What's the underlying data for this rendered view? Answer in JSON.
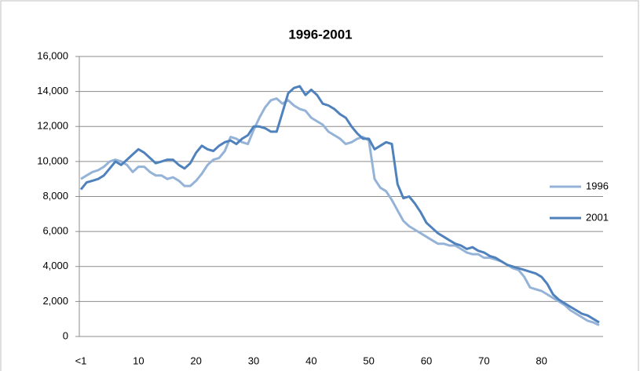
{
  "chart_data": {
    "type": "line",
    "title": "1996-2001",
    "categories": [
      "<1",
      null,
      null,
      null,
      null,
      null,
      null,
      null,
      null,
      null,
      "10",
      null,
      null,
      null,
      null,
      null,
      null,
      null,
      null,
      null,
      "20",
      null,
      null,
      null,
      null,
      null,
      null,
      null,
      null,
      null,
      "30",
      null,
      null,
      null,
      null,
      null,
      null,
      null,
      null,
      null,
      "40",
      null,
      null,
      null,
      null,
      null,
      null,
      null,
      null,
      null,
      "50",
      null,
      null,
      null,
      null,
      null,
      null,
      null,
      null,
      null,
      "60",
      null,
      null,
      null,
      null,
      null,
      null,
      null,
      null,
      null,
      "70",
      null,
      null,
      null,
      null,
      null,
      null,
      null,
      null,
      null,
      "80",
      null,
      null,
      null,
      null,
      null,
      null,
      null,
      null,
      null,
      null
    ],
    "series": [
      {
        "name": "1996",
        "color": "#95b3d7",
        "values": [
          9000,
          9200,
          9400,
          9500,
          9700,
          10000,
          10100,
          10000,
          9800,
          9400,
          9700,
          9700,
          9400,
          9200,
          9200,
          9000,
          9100,
          8900,
          8600,
          8600,
          8900,
          9300,
          9800,
          10100,
          10200,
          10600,
          11400,
          11300,
          11100,
          11000,
          11800,
          12500,
          13100,
          13500,
          13600,
          13300,
          13500,
          13200,
          13000,
          12900,
          12500,
          12300,
          12100,
          11700,
          11500,
          11300,
          11000,
          11100,
          11300,
          11400,
          11200,
          9000,
          8500,
          8300,
          7800,
          7200,
          6600,
          6300,
          6100,
          5900,
          5700,
          5500,
          5300,
          5300,
          5200,
          5200,
          5000,
          4800,
          4700,
          4700,
          4500,
          4500,
          4400,
          4300,
          4100,
          3900,
          3800,
          3400,
          2800,
          2700,
          2600,
          2400,
          2200,
          2000,
          1800,
          1500,
          1300,
          1100,
          900,
          800,
          650
        ]
      },
      {
        "name": "2001",
        "color": "#4f81bd",
        "values": [
          8400,
          8800,
          8900,
          9000,
          9200,
          9600,
          10000,
          9800,
          10100,
          10400,
          10700,
          10500,
          10200,
          9900,
          10000,
          10100,
          10100,
          9800,
          9600,
          9900,
          10500,
          10900,
          10700,
          10600,
          10900,
          11100,
          11200,
          11000,
          11300,
          11500,
          12000,
          12000,
          11900,
          11700,
          11700,
          12800,
          13900,
          14200,
          14300,
          13800,
          14100,
          13800,
          13300,
          13200,
          13000,
          12700,
          12500,
          12000,
          11600,
          11300,
          11300,
          10700,
          10900,
          11100,
          11000,
          8700,
          7900,
          8000,
          7600,
          7100,
          6500,
          6200,
          5900,
          5700,
          5500,
          5300,
          5200,
          5000,
          5100,
          4900,
          4800,
          4600,
          4500,
          4300,
          4100,
          4000,
          3900,
          3800,
          3700,
          3600,
          3400,
          3000,
          2400,
          2100,
          1900,
          1700,
          1500,
          1300,
          1200,
          1000,
          800
        ]
      }
    ],
    "ylim": [
      0,
      16000
    ],
    "yticks": [
      0,
      {
        "value": 2000,
        "label": "2,000"
      },
      {
        "value": 4000,
        "label": "4,000"
      },
      {
        "value": 6000,
        "label": "6,000"
      },
      {
        "value": 8000,
        "label": "8,000"
      },
      {
        "value": 10000,
        "label": "10,000"
      },
      {
        "value": 12000,
        "label": "12,000"
      },
      {
        "value": 14000,
        "label": "14,000"
      },
      {
        "value": 16000,
        "label": "16,000"
      }
    ],
    "grid": true,
    "legend": "right"
  }
}
